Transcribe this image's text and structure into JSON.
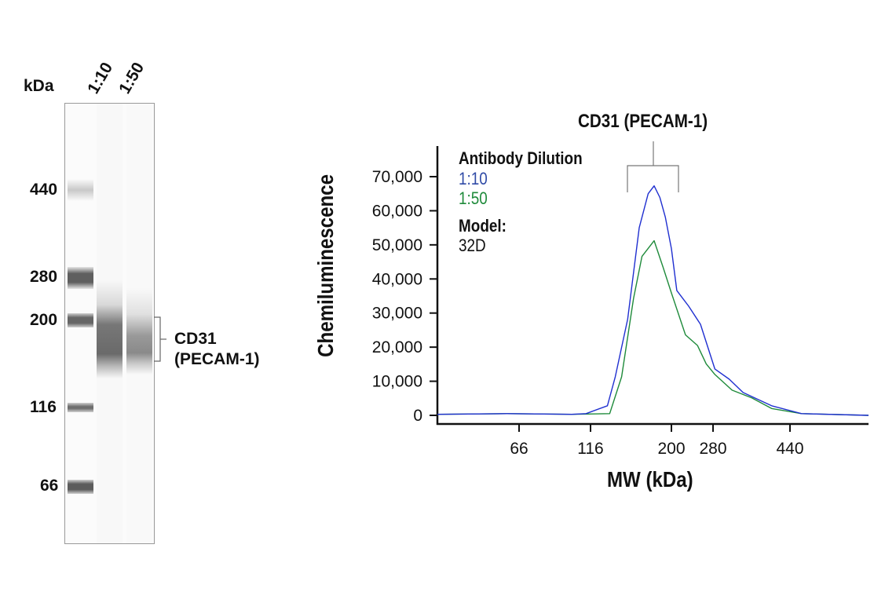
{
  "gel": {
    "unit_label": "kDa",
    "lane_labels": [
      "1:10",
      "1:50"
    ],
    "markers": [
      "440",
      "280",
      "200",
      "116",
      "66"
    ],
    "target_label_line1": "CD31",
    "target_label_line2": "(PECAM-1)"
  },
  "chart_data": {
    "type": "line",
    "title": "CD31 (PECAM-1)",
    "xlabel": "MW (kDa)",
    "ylabel": "Chemiluminescence",
    "x_ticks": [
      66,
      116,
      200,
      280,
      440
    ],
    "x_tick_labels": [
      "66",
      "116",
      "200",
      "280",
      "440"
    ],
    "xlim": [
      35,
      700
    ],
    "y_ticks": [
      0,
      10000,
      20000,
      30000,
      40000,
      50000,
      60000,
      70000
    ],
    "y_tick_labels": [
      "0",
      "10,000",
      "20,000",
      "30,000",
      "40,000",
      "50,000",
      "60,000",
      "70,000"
    ],
    "ylim": [
      0,
      80000
    ],
    "grid": false,
    "legend": {
      "title": "Antibody Dilution",
      "placement": "top-left",
      "model_label": "Model:",
      "model_value": "32D"
    },
    "series": [
      {
        "name": "1:10",
        "color": "#1f2fd0",
        "label_color": "#2f4aa6",
        "x": [
          35,
          60,
          100,
          112,
          130,
          137,
          149,
          161,
          171,
          178,
          185,
          192,
          200,
          209,
          230,
          253,
          283,
          308,
          334,
          395,
          471,
          700
        ],
        "y": [
          300,
          500,
          300,
          500,
          2800,
          11300,
          28200,
          55000,
          65000,
          67300,
          63900,
          58100,
          48900,
          36600,
          32000,
          26700,
          13600,
          10600,
          6700,
          2800,
          500,
          0
        ]
      },
      {
        "name": "1:50",
        "color": "#1e8a3a",
        "label_color": "#1e8a3a",
        "x": [
          35,
          60,
          100,
          132,
          143,
          155,
          164,
          178,
          189,
          200,
          224,
          247,
          265,
          283,
          313,
          352,
          395,
          471,
          700
        ],
        "y": [
          300,
          500,
          300,
          500,
          11300,
          34300,
          46600,
          51200,
          43500,
          35900,
          23600,
          20500,
          15100,
          12000,
          7400,
          5100,
          2000,
          500,
          0
        ]
      }
    ]
  }
}
